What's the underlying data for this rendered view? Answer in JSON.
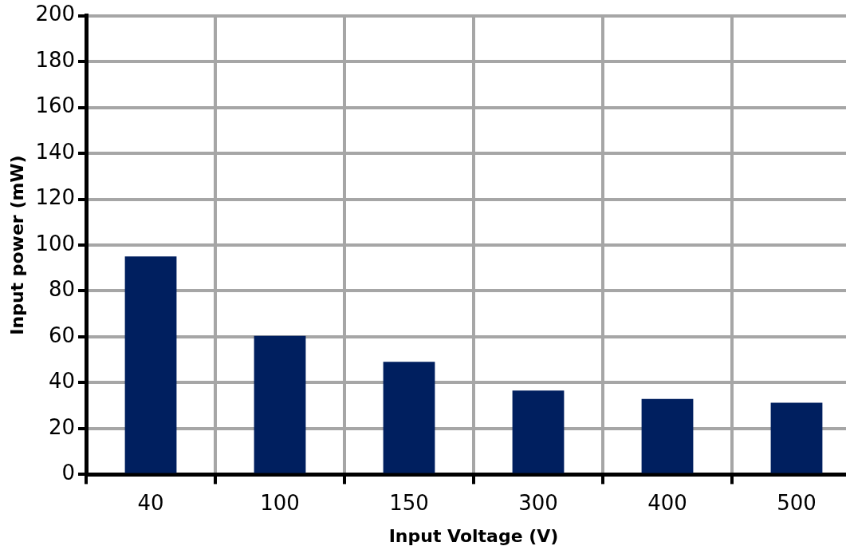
{
  "chart_data": {
    "type": "bar",
    "xlabel": "Input Voltage (V)",
    "ylabel": "Input power (mW)",
    "categories": [
      "40",
      "100",
      "150",
      "300",
      "400",
      "500"
    ],
    "values": [
      95,
      60.4,
      49.1,
      36.6,
      32.9,
      31.3
    ],
    "color": "#001f5f",
    "ylim": [
      0,
      200
    ],
    "yticks": [
      0,
      20,
      40,
      60,
      80,
      100,
      120,
      140,
      160,
      180,
      200
    ],
    "grid": true,
    "legend": false
  }
}
